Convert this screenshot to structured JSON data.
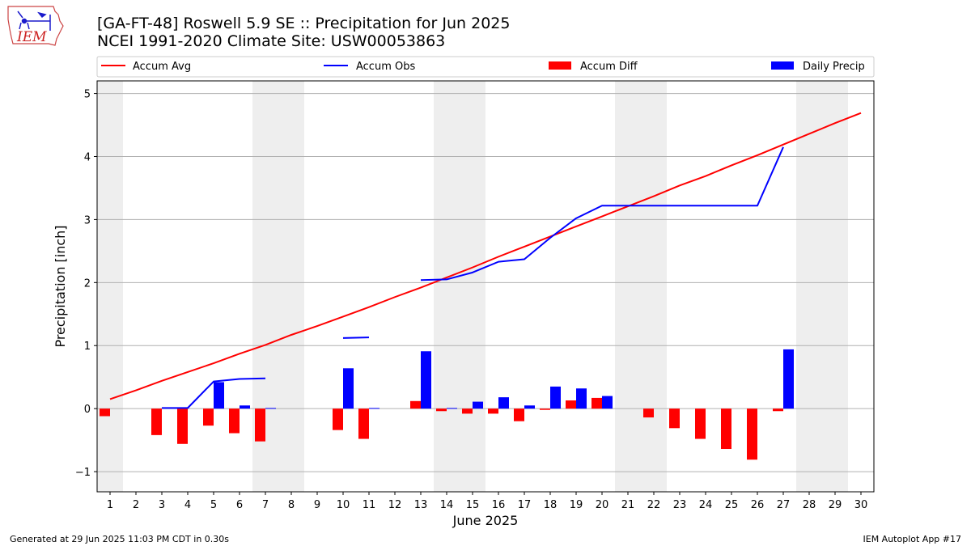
{
  "header": {
    "title_line1": "[GA-FT-48] Roswell 5.9 SE :: Precipitation for Jun 2025",
    "title_line2": "NCEI 1991-2020 Climate Site: USW00053863",
    "logo_text": "IEM"
  },
  "footer": {
    "generated": "Generated at 29 Jun 2025 11:03 PM CDT in 0.30s",
    "app": "IEM Autoplot App #17"
  },
  "colors": {
    "accum_avg": "#ff0000",
    "accum_obs": "#0000ff",
    "accum_diff": "#ff0000",
    "daily_precip": "#0000ff",
    "weekend_shade": "#eeeeee",
    "grid": "#b0b0b0"
  },
  "chart_data": {
    "type": "bar",
    "xlabel": "June 2025",
    "ylabel": "Precipitation [inch]",
    "ylim": [
      -1.32,
      5.2
    ],
    "yticks": [
      {
        "value": -1,
        "label": "−1"
      },
      {
        "value": 0,
        "label": "0"
      },
      {
        "value": 1,
        "label": "1"
      },
      {
        "value": 2,
        "label": "2"
      },
      {
        "value": 3,
        "label": "3"
      },
      {
        "value": 4,
        "label": "4"
      },
      {
        "value": 5,
        "label": "5"
      }
    ],
    "grid": "horizontal",
    "legend_position": "top",
    "days": [
      1,
      2,
      3,
      4,
      5,
      6,
      7,
      8,
      9,
      10,
      11,
      12,
      13,
      14,
      15,
      16,
      17,
      18,
      19,
      20,
      21,
      22,
      23,
      24,
      25,
      26,
      27,
      28,
      29,
      30
    ],
    "weekend_days": [
      1,
      7,
      8,
      14,
      15,
      21,
      22,
      28,
      29
    ],
    "series": [
      {
        "name": "Accum Avg",
        "kind": "line",
        "values": [
          0.15,
          0.29,
          0.44,
          0.58,
          0.72,
          0.87,
          1.01,
          1.17,
          1.31,
          1.46,
          1.61,
          1.77,
          1.92,
          2.08,
          2.24,
          2.41,
          2.57,
          2.73,
          2.89,
          3.05,
          3.21,
          3.37,
          3.54,
          3.69,
          3.86,
          4.02,
          4.19,
          4.36,
          4.53,
          4.69
        ]
      },
      {
        "name": "Accum Obs",
        "kind": "line",
        "values": [
          null,
          null,
          0.01,
          0.01,
          0.43,
          0.47,
          0.48,
          null,
          null,
          1.12,
          1.13,
          null,
          2.04,
          2.05,
          2.16,
          2.33,
          2.37,
          2.71,
          3.02,
          3.22,
          3.22,
          3.22,
          3.22,
          3.22,
          3.22,
          3.22,
          4.15,
          null,
          null,
          null
        ]
      },
      {
        "name": "Accum Diff",
        "kind": "bar",
        "values": [
          -0.12,
          null,
          -0.42,
          -0.56,
          -0.27,
          -0.39,
          -0.52,
          null,
          null,
          -0.34,
          -0.48,
          null,
          0.12,
          -0.04,
          -0.08,
          -0.08,
          -0.2,
          -0.02,
          0.13,
          0.17,
          null,
          -0.14,
          -0.31,
          -0.48,
          -0.64,
          -0.81,
          -0.04,
          null,
          null,
          null
        ]
      },
      {
        "name": "Daily Precip",
        "kind": "bar",
        "values": [
          null,
          null,
          0.0,
          0.0,
          0.42,
          0.05,
          0.01,
          null,
          null,
          0.64,
          0.01,
          null,
          0.91,
          0.01,
          0.11,
          0.18,
          0.05,
          0.35,
          0.32,
          0.2,
          0.0,
          0.0,
          0.0,
          0.0,
          0.0,
          0.0,
          0.94,
          null,
          null,
          null
        ]
      }
    ]
  }
}
